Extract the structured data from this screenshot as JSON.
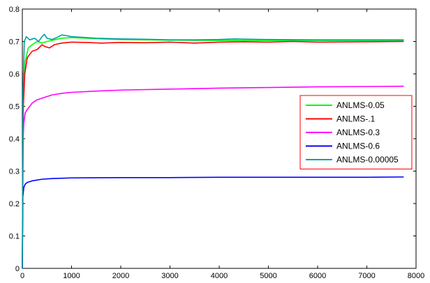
{
  "chart_data": {
    "type": "line",
    "title": "",
    "xlabel": "",
    "ylabel": "",
    "xlim": [
      0,
      8000
    ],
    "ylim": [
      0,
      0.8
    ],
    "xticks": [
      0,
      1000,
      2000,
      3000,
      4000,
      5000,
      6000,
      7000,
      8000
    ],
    "yticks": [
      0,
      0.1,
      0.2,
      0.3,
      0.4,
      0.5,
      0.6,
      0.7,
      0.8
    ],
    "grid": false,
    "legend_position": "right",
    "series": [
      {
        "name": "ANLMS-0.05",
        "color": "#00ff00",
        "points": [
          [
            0,
            0.0
          ],
          [
            20,
            0.52
          ],
          [
            60,
            0.64
          ],
          [
            120,
            0.68
          ],
          [
            200,
            0.69
          ],
          [
            300,
            0.7
          ],
          [
            400,
            0.695
          ],
          [
            500,
            0.7
          ],
          [
            650,
            0.705
          ],
          [
            800,
            0.71
          ],
          [
            1000,
            0.712
          ],
          [
            1300,
            0.71
          ],
          [
            1600,
            0.708
          ],
          [
            2000,
            0.706
          ],
          [
            2500,
            0.705
          ],
          [
            3000,
            0.704
          ],
          [
            4000,
            0.703
          ],
          [
            5000,
            0.703
          ],
          [
            6000,
            0.703
          ],
          [
            7000,
            0.703
          ],
          [
            7750,
            0.703
          ]
        ]
      },
      {
        "name": "ANLMS-.1",
        "color": "#ff0000",
        "points": [
          [
            0,
            0.0
          ],
          [
            20,
            0.5
          ],
          [
            50,
            0.6
          ],
          [
            100,
            0.65
          ],
          [
            200,
            0.67
          ],
          [
            300,
            0.675
          ],
          [
            400,
            0.69
          ],
          [
            450,
            0.685
          ],
          [
            550,
            0.68
          ],
          [
            650,
            0.69
          ],
          [
            800,
            0.695
          ],
          [
            1000,
            0.698
          ],
          [
            1300,
            0.697
          ],
          [
            1600,
            0.695
          ],
          [
            2000,
            0.697
          ],
          [
            2500,
            0.696
          ],
          [
            3000,
            0.698
          ],
          [
            3500,
            0.695
          ],
          [
            4000,
            0.698
          ],
          [
            4500,
            0.699
          ],
          [
            5000,
            0.698
          ],
          [
            5500,
            0.7
          ],
          [
            6000,
            0.698
          ],
          [
            7000,
            0.699
          ],
          [
            7750,
            0.7
          ]
        ]
      },
      {
        "name": "ANLMS-0.3",
        "color": "#ff00ff",
        "points": [
          [
            0,
            0.0
          ],
          [
            10,
            0.38
          ],
          [
            30,
            0.45
          ],
          [
            60,
            0.48
          ],
          [
            100,
            0.49
          ],
          [
            200,
            0.51
          ],
          [
            300,
            0.52
          ],
          [
            400,
            0.525
          ],
          [
            600,
            0.535
          ],
          [
            800,
            0.54
          ],
          [
            1000,
            0.543
          ],
          [
            1500,
            0.547
          ],
          [
            2000,
            0.55
          ],
          [
            3000,
            0.553
          ],
          [
            4000,
            0.556
          ],
          [
            5000,
            0.558
          ],
          [
            6000,
            0.56
          ],
          [
            7000,
            0.561
          ],
          [
            7750,
            0.562
          ]
        ]
      },
      {
        "name": "ANLMS-0.6",
        "color": "#0000ff",
        "points": [
          [
            0,
            0.0
          ],
          [
            10,
            0.22
          ],
          [
            30,
            0.25
          ],
          [
            60,
            0.26
          ],
          [
            100,
            0.265
          ],
          [
            200,
            0.27
          ],
          [
            400,
            0.275
          ],
          [
            600,
            0.277
          ],
          [
            800,
            0.278
          ],
          [
            1000,
            0.279
          ],
          [
            2000,
            0.28
          ],
          [
            3000,
            0.28
          ],
          [
            4000,
            0.281
          ],
          [
            5000,
            0.281
          ],
          [
            6000,
            0.281
          ],
          [
            7000,
            0.281
          ],
          [
            7750,
            0.282
          ]
        ]
      },
      {
        "name": "ANLMS-0.00005",
        "color": "#00a0a0",
        "points": [
          [
            0,
            0.0
          ],
          [
            15,
            0.55
          ],
          [
            40,
            0.7
          ],
          [
            80,
            0.715
          ],
          [
            150,
            0.705
          ],
          [
            250,
            0.71
          ],
          [
            330,
            0.7
          ],
          [
            400,
            0.715
          ],
          [
            450,
            0.722
          ],
          [
            500,
            0.71
          ],
          [
            600,
            0.706
          ],
          [
            700,
            0.712
          ],
          [
            800,
            0.72
          ],
          [
            900,
            0.718
          ],
          [
            1000,
            0.715
          ],
          [
            1200,
            0.713
          ],
          [
            1500,
            0.71
          ],
          [
            2000,
            0.708
          ],
          [
            2500,
            0.707
          ],
          [
            3000,
            0.705
          ],
          [
            3500,
            0.705
          ],
          [
            4000,
            0.706
          ],
          [
            4300,
            0.708
          ],
          [
            4600,
            0.707
          ],
          [
            5000,
            0.706
          ],
          [
            6000,
            0.705
          ],
          [
            7000,
            0.705
          ],
          [
            7750,
            0.705
          ]
        ]
      }
    ]
  }
}
